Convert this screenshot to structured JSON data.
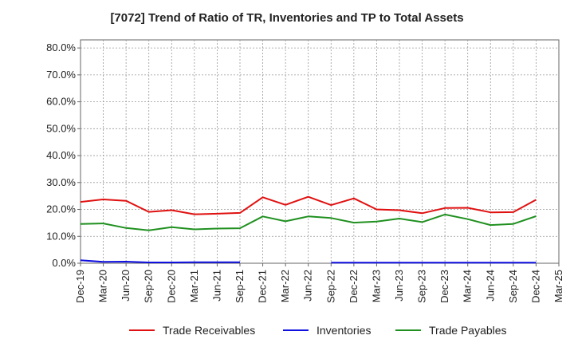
{
  "chart_data": {
    "type": "line",
    "title": "[7072]  Trend of Ratio of TR, Inventories and TP to Total Assets",
    "xlabel": "",
    "ylabel": "",
    "ylim": [
      0,
      0.83
    ],
    "y_ticks": [
      "0.0%",
      "10.0%",
      "20.0%",
      "30.0%",
      "40.0%",
      "50.0%",
      "60.0%",
      "70.0%",
      "80.0%"
    ],
    "x_ticks": [
      "Dec-19",
      "Mar-20",
      "Jun-20",
      "Sep-20",
      "Dec-20",
      "Mar-21",
      "Jun-21",
      "Sep-21",
      "Dec-21",
      "Mar-22",
      "Jun-22",
      "Sep-22",
      "Dec-22",
      "Mar-23",
      "Jun-23",
      "Sep-23",
      "Dec-23",
      "Mar-24",
      "Jun-24",
      "Sep-24",
      "Dec-24",
      "Mar-25"
    ],
    "grid": true,
    "legend_position": "bottom",
    "series": [
      {
        "name": "Trade Receivables",
        "color": "#e01010",
        "values": [
          22.8,
          23.7,
          23.2,
          19.1,
          19.7,
          18.2,
          18.4,
          18.7,
          24.5,
          21.7,
          24.7,
          21.6,
          24.1,
          20.0,
          19.7,
          18.6,
          20.5,
          20.6,
          18.9,
          19.0,
          23.6,
          null
        ]
      },
      {
        "name": "Inventories",
        "color": "#1010e0",
        "values": [
          1.1,
          0.5,
          0.6,
          0.3,
          0.3,
          0.4,
          0.4,
          0.4,
          null,
          null,
          null,
          0.2,
          0.2,
          0.2,
          0.2,
          0.2,
          0.2,
          0.2,
          0.2,
          0.2,
          0.2,
          null
        ]
      },
      {
        "name": "Trade Payables",
        "color": "#209020",
        "values": [
          14.6,
          14.8,
          13.1,
          12.2,
          13.4,
          12.6,
          12.9,
          13.0,
          17.4,
          15.6,
          17.4,
          16.8,
          15.1,
          15.5,
          16.6,
          15.3,
          18.1,
          16.4,
          14.2,
          14.6,
          17.5,
          null
        ]
      }
    ]
  }
}
